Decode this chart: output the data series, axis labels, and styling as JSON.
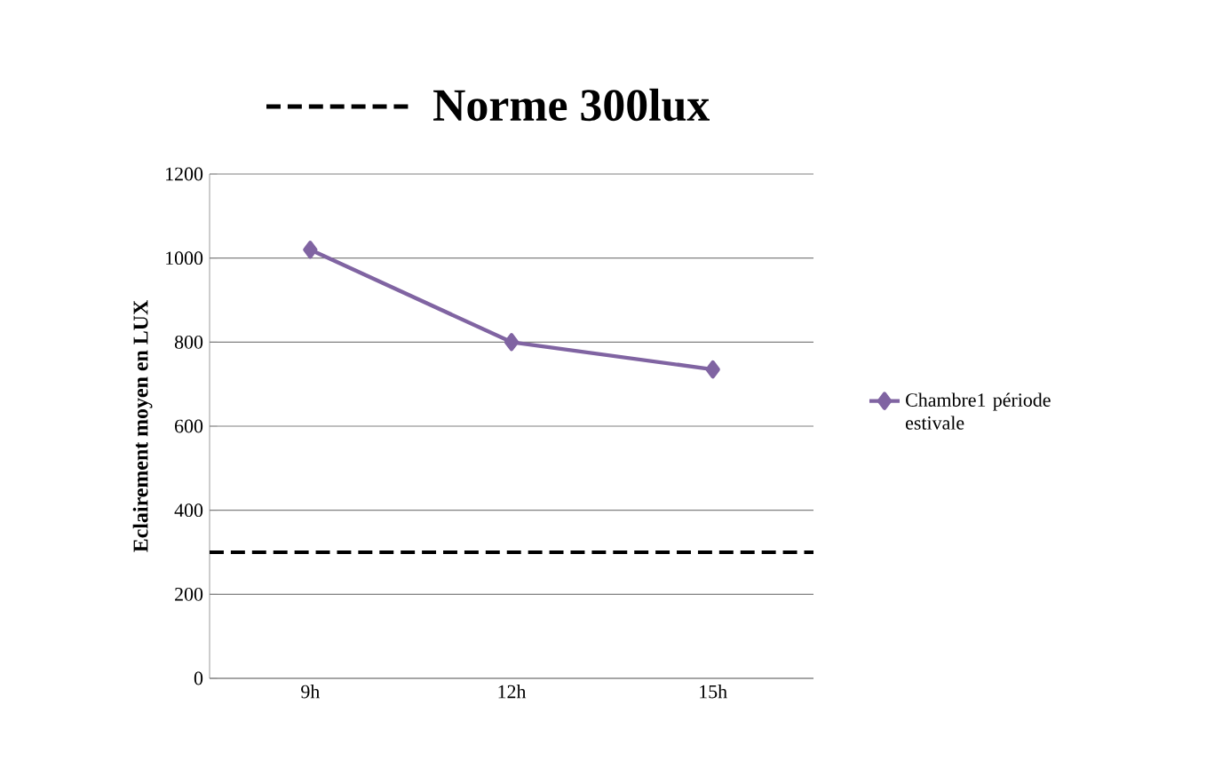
{
  "chart_data": {
    "type": "line",
    "ylabel": "Eclairement moyen en LUX",
    "categories": [
      "9h",
      "12h",
      "15h"
    ],
    "series": [
      {
        "name": "Chambre1 période estivale",
        "color": "#8064a2",
        "values": [
          1020,
          800,
          735
        ]
      }
    ],
    "ylim": [
      0,
      1200
    ],
    "yticks": [
      0,
      200,
      400,
      600,
      800,
      1000,
      1200
    ],
    "grid": "y",
    "legend": "right",
    "marker": "diamond",
    "line_style": "solid",
    "ref_lines": [
      {
        "axis": "y",
        "value": 300,
        "label": "Norme 300lux",
        "color": "#000000",
        "line_style": "dashed"
      }
    ]
  }
}
